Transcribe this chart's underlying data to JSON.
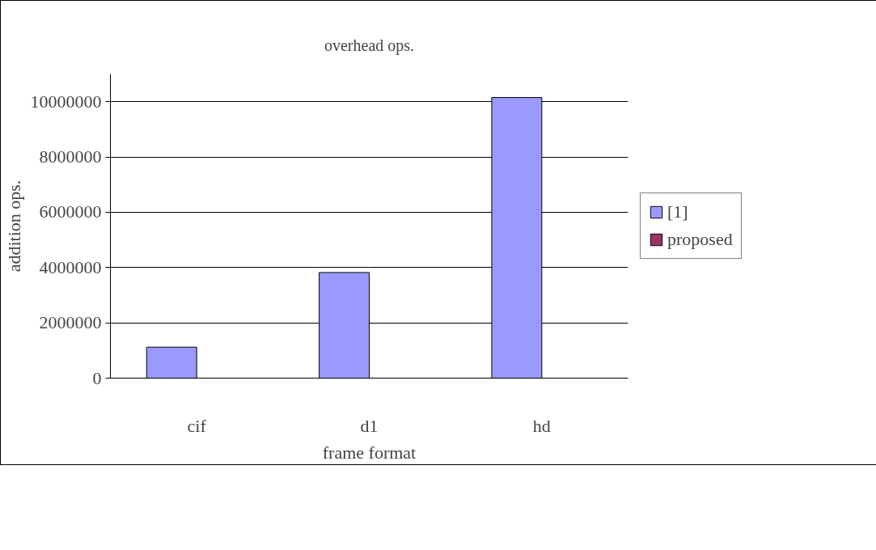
{
  "chart_data": {
    "type": "bar",
    "title": "overhead ops.",
    "xlabel": "frame format",
    "ylabel": "addition ops.",
    "categories": [
      "cif",
      "d1",
      "hd"
    ],
    "series": [
      {
        "name": "[1]",
        "color": "#9999ff",
        "values": [
          1120000,
          3820000,
          10150000
        ]
      },
      {
        "name": "proposed",
        "color": "#993366",
        "values": [
          null,
          null,
          null
        ]
      }
    ],
    "ylim": [
      0,
      11000000
    ],
    "yticks": [
      0,
      2000000,
      4000000,
      6000000,
      8000000,
      10000000
    ],
    "grid": "y",
    "legend": "right"
  }
}
